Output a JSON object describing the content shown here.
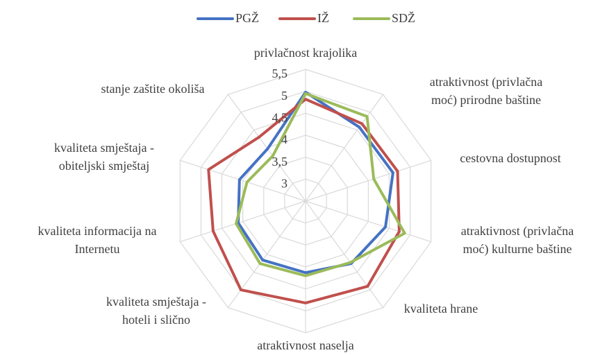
{
  "chart_data": {
    "type": "radar",
    "categories": [
      [
        "privlačnost krajolika"
      ],
      [
        "atraktivnost (privlačna",
        "moć) prirodne baštine"
      ],
      [
        "cestovna dostupnost"
      ],
      [
        "atraktivnost (privlačna",
        "moć) kulturne baštine"
      ],
      [
        "kvaliteta hrane"
      ],
      [
        "atraktivnost naselja"
      ],
      [
        "kvaliteta smještaja -",
        "hoteli i slično"
      ],
      [
        "kvaliteta informacija na",
        "Internetu"
      ],
      [
        "kvaliteta smještaja -",
        "obiteljski smještaj"
      ],
      [
        "stanje zaštite okoliša"
      ]
    ],
    "series": [
      {
        "name": "PGŽ",
        "color": "#4472c4",
        "values": [
          4.98,
          4.58,
          4.59,
          4.41,
          4.26,
          4.13,
          4.16,
          4.11,
          4.08,
          3.97
        ]
      },
      {
        "name": "IŽ",
        "color": "#c0504d",
        "values": [
          4.82,
          4.68,
          4.7,
          4.74,
          4.9,
          4.82,
          5.0,
          4.71,
          4.82,
          4.3
        ]
      },
      {
        "name": "SDŽ",
        "color": "#9bbb59",
        "values": [
          4.95,
          4.88,
          4.13,
          4.87,
          4.23,
          4.2,
          4.26,
          4.16,
          3.9,
          3.77
        ]
      }
    ],
    "ylim": [
      2.5,
      5.5
    ],
    "yticks": [
      3,
      {
        "value": 3.5,
        "label": "3,5"
      },
      4,
      {
        "value": 4.5,
        "label": "4,5"
      },
      5,
      {
        "value": 5.5,
        "label": "5,5"
      }
    ],
    "grid": true,
    "legend": "top"
  }
}
